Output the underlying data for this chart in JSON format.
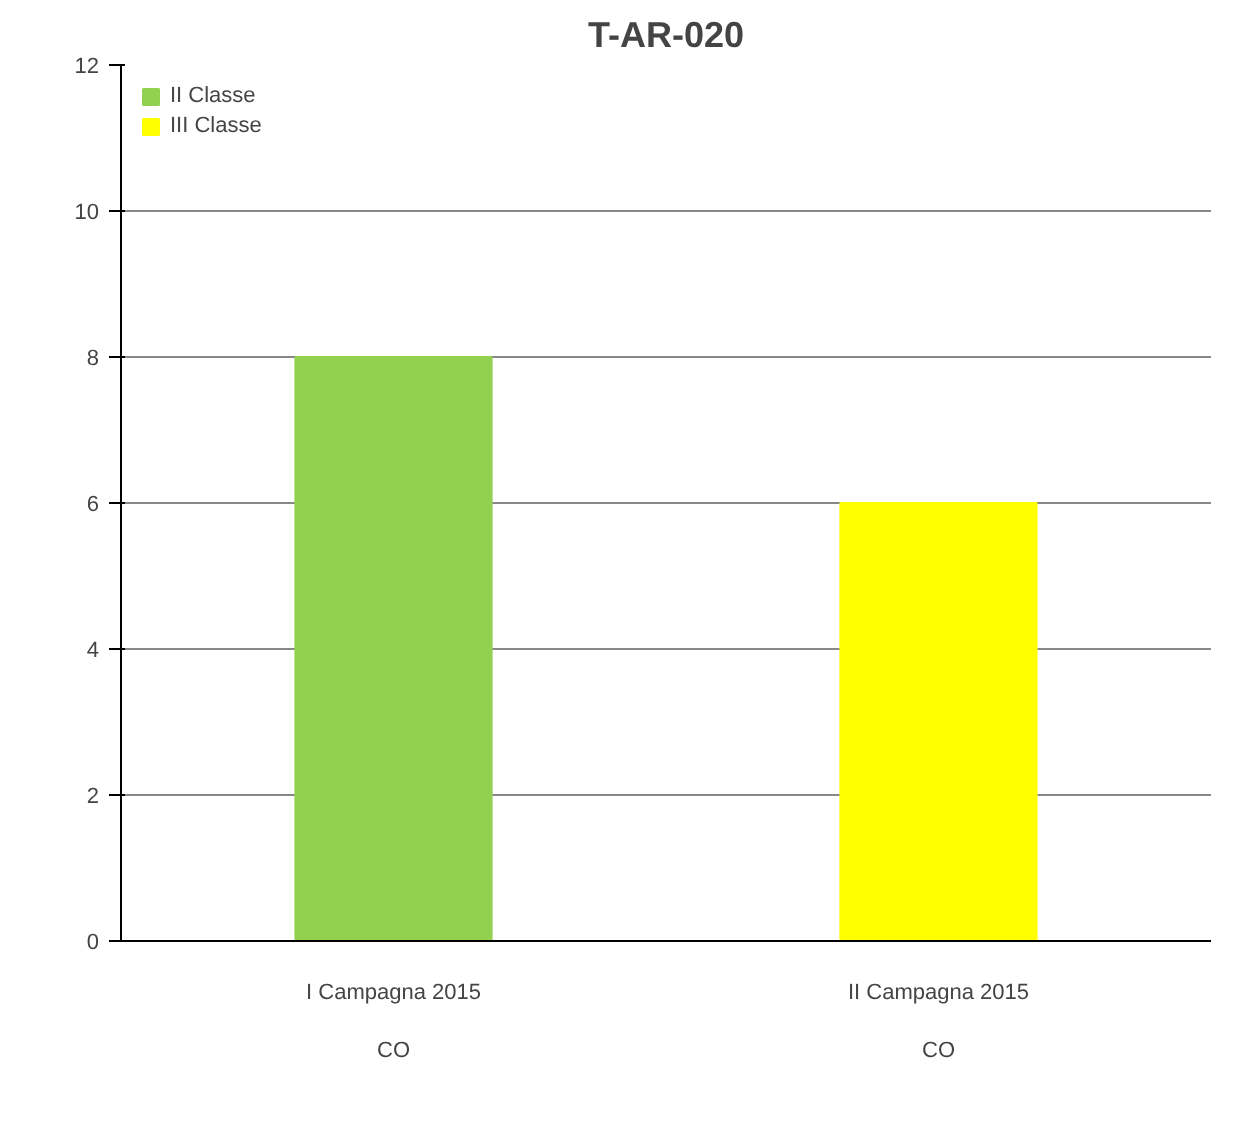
{
  "chart_data": {
    "type": "bar",
    "title": "T-AR-020",
    "categories": [
      "I Campagna 2015\n\nCO",
      "II Campagna 2015\n\nCO"
    ],
    "series": [
      {
        "name": "II Classe",
        "color": "#92d050",
        "values": [
          8,
          null
        ]
      },
      {
        "name": "III Classe",
        "color": "#ffff00",
        "values": [
          null,
          6
        ]
      }
    ],
    "ylim": [
      0,
      12
    ],
    "yticks": [
      0,
      2,
      4,
      6,
      8,
      10,
      12
    ],
    "grid": "y",
    "legend": "top left"
  }
}
